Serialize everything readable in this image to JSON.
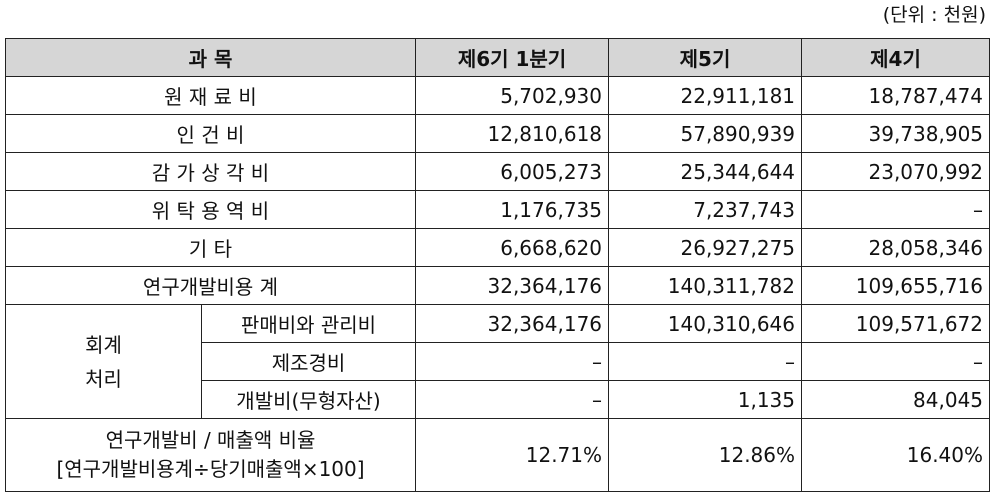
{
  "unit_label": "(단위 : 천원)",
  "headers": {
    "item": "과 목",
    "q1_6": "제6기 1분기",
    "p5": "제5기",
    "p4": "제4기"
  },
  "rows": [
    {
      "label": "원 재 료 비",
      "q1_6": "5,702,930",
      "p5": "22,911,181",
      "p4": "18,787,474"
    },
    {
      "label": "인 건 비",
      "q1_6": "12,810,618",
      "p5": "57,890,939",
      "p4": "39,738,905"
    },
    {
      "label": "감 가 상 각 비",
      "q1_6": "6,005,273",
      "p5": "25,344,644",
      "p4": "23,070,992"
    },
    {
      "label": "위 탁 용 역 비",
      "q1_6": "1,176,735",
      "p5": "7,237,743",
      "p4": "–"
    },
    {
      "label": "기 타",
      "q1_6": "6,668,620",
      "p5": "26,927,275",
      "p4": "28,058,346"
    },
    {
      "label": "연구개발비용 계",
      "q1_6": "32,364,176",
      "p5": "140,311,782",
      "p4": "109,655,716"
    }
  ],
  "accounting": {
    "category_line1": "회계",
    "category_line2": "처리",
    "rows": [
      {
        "label": "판매비와 관리비",
        "q1_6": "32,364,176",
        "p5": "140,310,646",
        "p4": "109,571,672"
      },
      {
        "label": "제조경비",
        "q1_6": "–",
        "p5": "–",
        "p4": "–"
      },
      {
        "label": "개발비(무형자산)",
        "q1_6": "–",
        "p5": "1,135",
        "p4": "84,045"
      }
    ]
  },
  "ratio": {
    "label_line1": "연구개발비 / 매출액 비율",
    "label_line2": "[연구개발비용계÷당기매출액×100]",
    "q1_6": "12.71%",
    "p5": "12.86%",
    "p4": "16.40%"
  }
}
